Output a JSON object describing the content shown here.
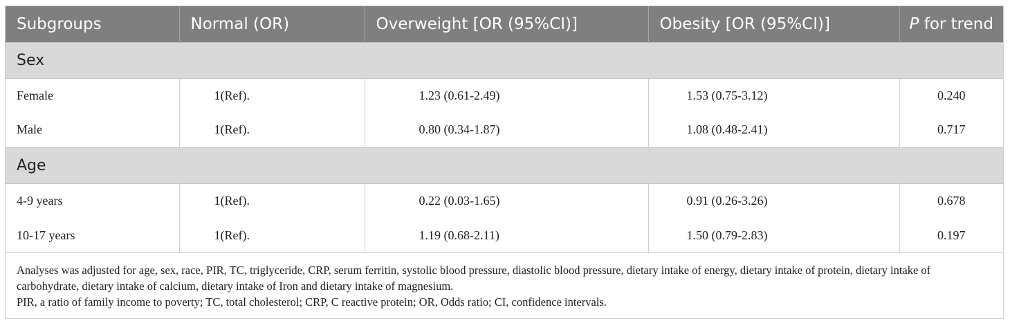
{
  "header": {
    "col1": "Subgroups",
    "col2": "Normal (OR)",
    "col3": "Overweight [OR (95%CI)]",
    "col4": "Obesity [OR (95%CI)]",
    "col5_italic": "P",
    "col5_rest": " for trend"
  },
  "groups": [
    {
      "label": "Sex",
      "rows": [
        {
          "subgroup": "Female",
          "normal": "1(Ref).",
          "overweight": "1.23 (0.61-2.49)",
          "obesity": "1.53 (0.75-3.12)",
          "p": "0.240"
        },
        {
          "subgroup": "Male",
          "normal": "1(Ref).",
          "overweight": "0.80 (0.34-1.87)",
          "obesity": "1.08 (0.48-2.41)",
          "p": "0.717"
        }
      ]
    },
    {
      "label": "Age",
      "rows": [
        {
          "subgroup": "4-9 years",
          "normal": "1(Ref).",
          "overweight": "0.22 (0.03-1.65)",
          "obesity": "0.91 (0.26-3.26)",
          "p": "0.678"
        },
        {
          "subgroup": "10-17 years",
          "normal": "1(Ref).",
          "overweight": "1.19 (0.68-2.11)",
          "obesity": "1.50 (0.79-2.83)",
          "p": "0.197"
        }
      ]
    }
  ],
  "notes": {
    "line1": "Analyses was adjusted for age, sex, race, PIR, TC, triglyceride, CRP, serum ferritin, systolic blood pressure, diastolic blood pressure, dietary intake of energy, dietary intake of protein, dietary intake of carbohydrate, dietary intake of calcium, dietary intake of Iron and dietary intake of magnesium.",
    "line2": "PIR, a ratio of family income to poverty; TC, total cholesterol; CRP, C reactive protein; OR, Odds ratio; CI, confidence intervals."
  },
  "colors": {
    "header_bg": "#7f7f7f",
    "group_bg": "#d9d9d9"
  }
}
